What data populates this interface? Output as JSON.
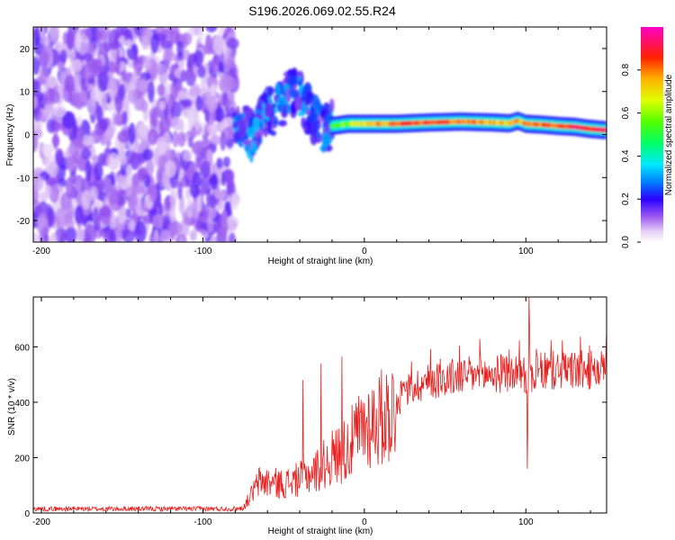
{
  "page_title": "S196.2026.069.02.55.R24",
  "colors": {
    "axis": "#000000",
    "snr_line": "#e8201f",
    "colormap": [
      "#ffffff",
      "#e2c8f5",
      "#b07af0",
      "#7b2ff0",
      "#3f00e6",
      "#0024ff",
      "#00b4ff",
      "#00ffd8",
      "#33ff33",
      "#d8ff00",
      "#ffc800",
      "#ff5000",
      "#ff0000",
      "#ff00aa"
    ]
  },
  "chart_data": [
    {
      "type": "heatmap",
      "title": "S196.2026.069.02.55.R24",
      "xlabel": "Height of straight line (km)",
      "ylabel": "Frequency (Hz)",
      "xlim": [
        -205,
        150
      ],
      "ylim": [
        -25,
        25
      ],
      "xticks": [
        -200,
        -100,
        0,
        100
      ],
      "xtick_labels": [
        "-200",
        "-100",
        "0",
        "100"
      ],
      "yticks": [
        -20,
        -10,
        0,
        10,
        20
      ],
      "ytick_labels": [
        "-20",
        "-10",
        "0",
        "10",
        "20"
      ],
      "colorbar": {
        "label": "Normalized spectral amplitude",
        "range": [
          0,
          1
        ],
        "ticks": [
          0.0,
          0.2,
          0.4,
          0.6,
          0.8
        ],
        "tick_labels": [
          "0.0",
          "0.2",
          "0.4",
          "0.6",
          "0.8"
        ]
      },
      "description_regions": [
        {
          "x_range": [
            -205,
            -80
          ],
          "freq_range": [
            -25,
            25
          ],
          "amplitude": "low, scattered noise (~0.05-0.15)"
        },
        {
          "x_range": [
            -80,
            -20
          ],
          "freq_range": [
            -5,
            12
          ],
          "amplitude": "broken signal (~0.2-0.35)"
        },
        {
          "x_range": [
            -20,
            150
          ],
          "freq_range": [
            0,
            4
          ],
          "amplitude": "coherent narrow band (~0.6-0.95)"
        }
      ],
      "ridge": {
        "x": [
          -80,
          -75,
          -70,
          -65,
          -60,
          -55,
          -50,
          -45,
          -40,
          -35,
          -30,
          -25,
          -20,
          -10,
          0,
          20,
          40,
          60,
          80,
          90,
          95,
          100,
          110,
          120,
          130,
          140,
          150
        ],
        "freq": [
          1,
          2,
          0,
          3,
          6,
          5,
          8,
          10,
          9,
          6,
          3,
          1,
          2,
          2.5,
          2.5,
          2.5,
          2.8,
          3,
          2.8,
          2.6,
          3.2,
          2.5,
          2.3,
          2.0,
          1.8,
          1.3,
          1.0
        ],
        "amplitude": [
          0.3,
          0.3,
          0.25,
          0.3,
          0.3,
          0.3,
          0.35,
          0.3,
          0.3,
          0.25,
          0.25,
          0.3,
          0.5,
          0.6,
          0.7,
          0.8,
          0.85,
          0.8,
          0.75,
          0.7,
          0.75,
          0.8,
          0.8,
          0.85,
          0.9,
          0.9,
          0.9
        ]
      }
    },
    {
      "type": "line",
      "xlabel": "Height of straight line (km)",
      "ylabel": "SNR (10 * v/v)",
      "xlim": [
        -205,
        150
      ],
      "ylim": [
        0,
        780
      ],
      "xticks": [
        -200,
        -100,
        0,
        100
      ],
      "xtick_labels": [
        "-200",
        "-100",
        "0",
        "100"
      ],
      "yticks": [
        0,
        200,
        400,
        600
      ],
      "ytick_labels": [
        "0",
        "200",
        "400",
        "600"
      ],
      "series": [
        {
          "name": "SNR",
          "envelope_x": [
            -205,
            -80,
            -75,
            -65,
            -50,
            -40,
            -30,
            -20,
            -10,
            0,
            10,
            20,
            25,
            30,
            40,
            50,
            60,
            80,
            90,
            100,
            101,
            102,
            103,
            110,
            120,
            130,
            140,
            150
          ],
          "envelope_y": [
            15,
            15,
            20,
            120,
            110,
            130,
            160,
            210,
            250,
            330,
            360,
            400,
            440,
            460,
            480,
            490,
            500,
            505,
            510,
            510,
            300,
            650,
            500,
            515,
            520,
            520,
            520,
            520
          ],
          "spikes": [
            {
              "x": -38,
              "y": 480
            },
            {
              "x": -27,
              "y": 540
            },
            {
              "x": -14,
              "y": 565
            },
            {
              "x": 102,
              "y": 780
            },
            {
              "x": 101,
              "y": 160
            },
            {
              "x": 150,
              "y": 640
            }
          ]
        }
      ]
    }
  ]
}
